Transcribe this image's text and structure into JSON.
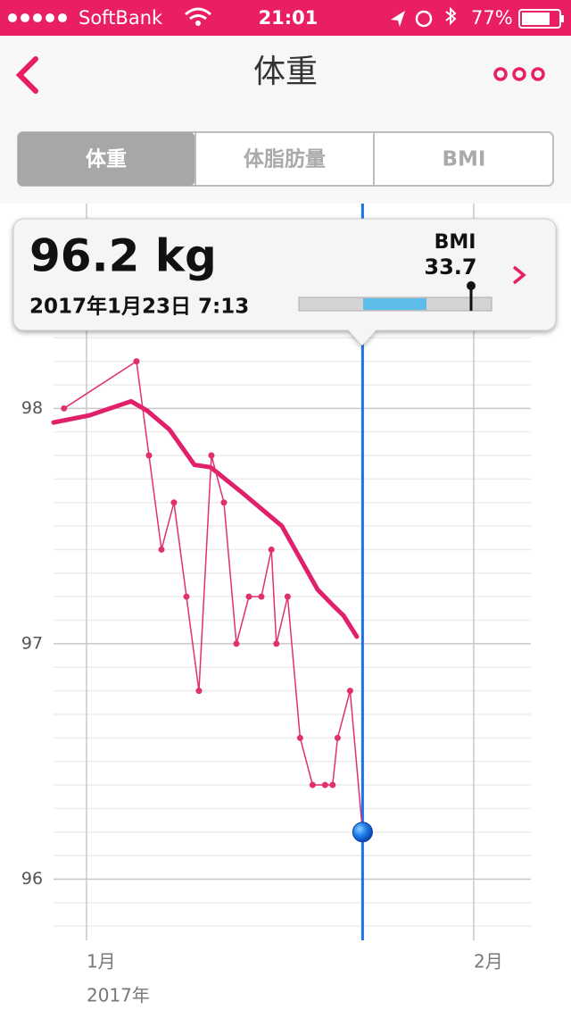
{
  "status_bar": {
    "carrier": "SoftBank",
    "time": "21:01",
    "battery": "77%"
  },
  "nav": {
    "title": "体重"
  },
  "tabs": [
    "体重",
    "体脂肪量",
    "BMI"
  ],
  "card": {
    "weight": "96.2 kg",
    "datetime": "2017年1月23日 7:13",
    "bmi_label": "BMI",
    "bmi_value": "33.7"
  },
  "chart_data": {
    "type": "line",
    "x_label": "2017年",
    "xlim": [
      -1.64,
      36.57
    ],
    "xticks": [
      {
        "value": 1,
        "label": "1月"
      },
      {
        "value": 32,
        "label": "2月"
      }
    ],
    "ylim": [
      95.74,
      98.87
    ],
    "yticks": [
      96,
      97,
      98
    ],
    "minor_yticks": [
      95.8,
      95.9,
      96.1,
      96.2,
      96.3,
      96.4,
      96.5,
      96.6,
      96.7,
      96.8,
      96.9,
      97.1,
      97.2,
      97.3,
      97.4,
      97.5,
      97.6,
      97.7,
      97.8,
      97.9,
      98.1,
      98.2,
      98.3
    ],
    "grid": true,
    "selected_index": 21,
    "selected_color": "#1a73e8",
    "series": [
      {
        "color": "#e0306e",
        "markers": true,
        "x": [
          -0.8,
          5,
          6,
          7,
          8,
          9,
          10,
          11,
          12,
          13,
          14,
          15,
          15.8,
          16.2,
          17.1,
          18.1,
          19.1,
          20.1,
          20.7,
          21.1,
          22.1,
          23.1
        ],
        "values": [
          98.0,
          98.2,
          97.8,
          97.4,
          97.6,
          97.2,
          96.8,
          97.8,
          97.6,
          97.0,
          97.2,
          97.2,
          97.4,
          97.0,
          97.2,
          96.6,
          96.4,
          96.4,
          96.4,
          96.6,
          96.8,
          96.2
        ]
      },
      {
        "color": "#e0206a",
        "markers": false,
        "x": [
          -1.64,
          1.21,
          4.57,
          5.86,
          7.64,
          9.64,
          10.93,
          13.5,
          16.64,
          19.5,
          20.79,
          21.57,
          22.64
        ],
        "values": [
          97.94,
          97.97,
          98.03,
          97.99,
          97.91,
          97.76,
          97.75,
          97.64,
          97.5,
          97.23,
          97.16,
          97.12,
          97.03
        ]
      }
    ]
  }
}
